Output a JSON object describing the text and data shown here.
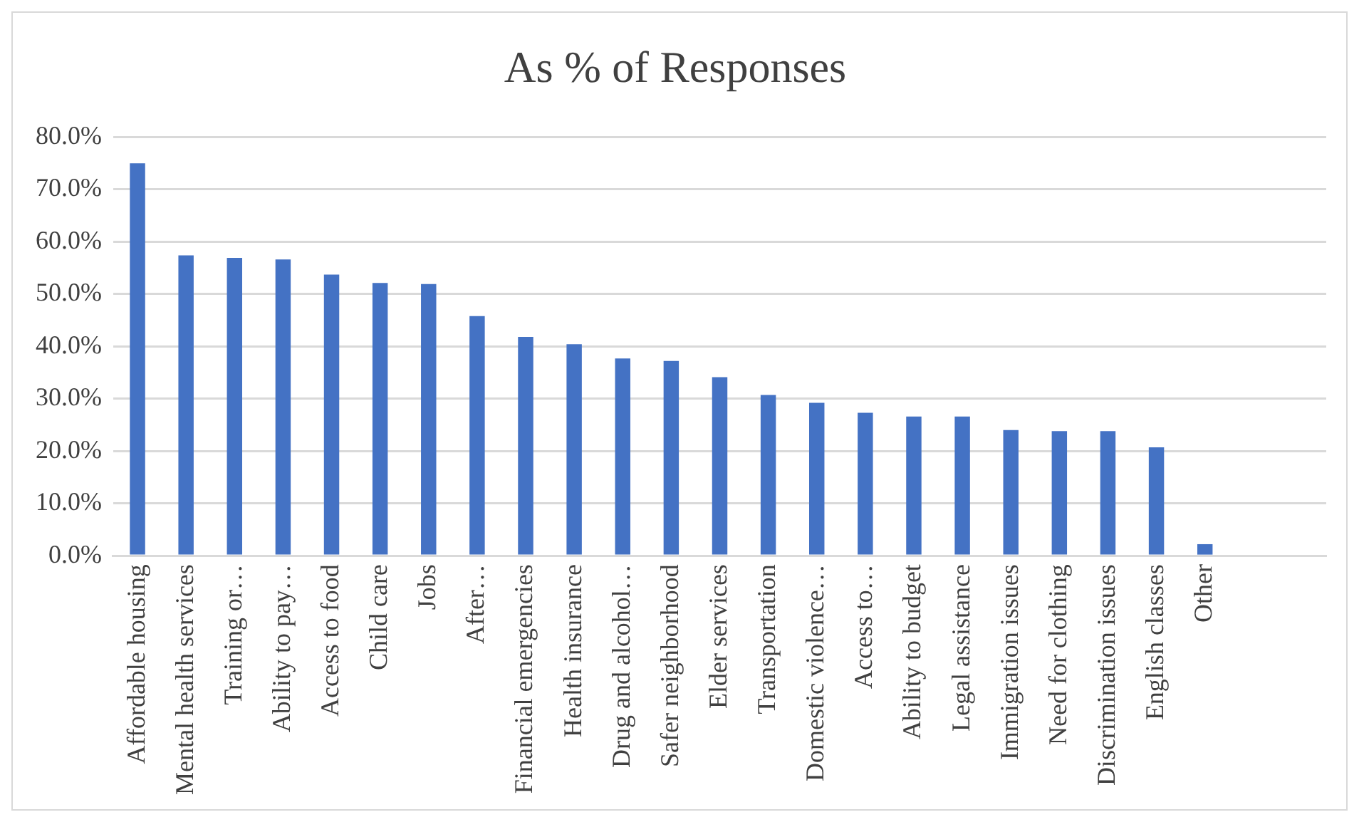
{
  "chart_data": {
    "type": "bar",
    "title": "As % of Responses",
    "categories": [
      "Affordable housing",
      "Mental health services",
      "Training or…",
      "Ability to pay…",
      "Access to food",
      "Child care",
      "Jobs",
      "After…",
      "Financial emergencies",
      "Health insurance",
      "Drug and alcohol…",
      "Safer neighborhood",
      "Elder services",
      "Transportation",
      "Domestic violence…",
      "Access to…",
      "Ability to budget",
      "Legal assistance",
      "Immigration issues",
      "Need for clothing",
      "Discrimination issues",
      "English classes",
      "Other",
      null,
      null
    ],
    "values": [
      75.0,
      57.4,
      56.9,
      56.6,
      53.7,
      52.1,
      51.9,
      45.8,
      41.8,
      40.4,
      37.7,
      37.2,
      34.1,
      30.7,
      29.2,
      27.3,
      26.6,
      26.6,
      24.0,
      23.8,
      23.8,
      20.7,
      2.2,
      null,
      null
    ],
    "color": "#4472c4",
    "ylim": [
      0,
      80
    ],
    "yticks": [
      {
        "value": 0,
        "label": "0.0%"
      },
      {
        "value": 10,
        "label": "10.0%"
      },
      {
        "value": 20,
        "label": "20.0%"
      },
      {
        "value": 30,
        "label": "30.0%"
      },
      {
        "value": 40,
        "label": "40.0%"
      },
      {
        "value": 50,
        "label": "50.0%"
      },
      {
        "value": 60,
        "label": "60.0%"
      },
      {
        "value": 70,
        "label": "70.0%"
      },
      {
        "value": 80,
        "label": "80.0%"
      }
    ],
    "grid": "y",
    "legend": false
  }
}
